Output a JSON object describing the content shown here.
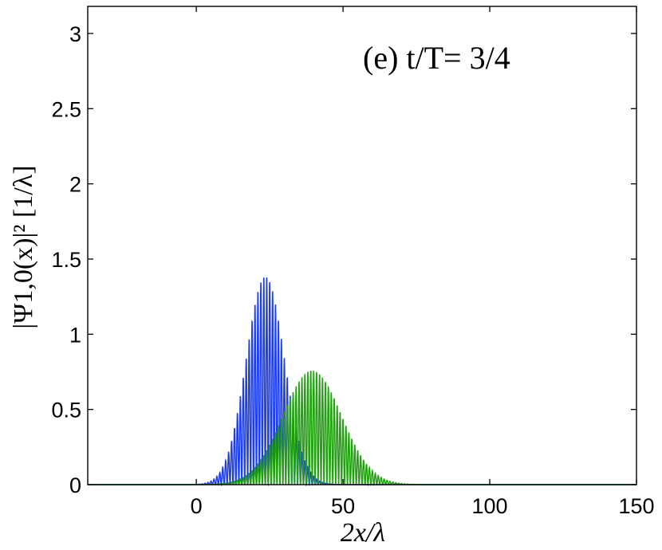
{
  "chart_data": {
    "type": "line",
    "annotation": "(e) t/T= 3/4",
    "xlabel": "2x/λ",
    "ylabel": "|Ψ1,0(x)|² [1/λ]",
    "xlim": [
      -37,
      150
    ],
    "ylim": [
      0,
      3.18
    ],
    "x_ticks": [
      0,
      50,
      100,
      150
    ],
    "y_ticks": [
      0,
      0.5,
      1,
      1.5,
      2,
      2.5,
      3
    ],
    "x_tick_labels": [
      "0",
      "50",
      "100",
      "150"
    ],
    "y_tick_labels": [
      "0",
      "0.5",
      "1",
      "1.5",
      "2",
      "2.5",
      "3"
    ],
    "grid": false,
    "legend": "none",
    "series": [
      {
        "color": "#1f3fe6",
        "center": 23.5,
        "width": 6.5,
        "peak": 1.39,
        "oscillation_period": 1,
        "x": [
          5,
          10,
          15,
          20,
          23.5,
          27,
          30,
          35,
          40,
          45
        ],
        "y": [
          0.01,
          0.08,
          0.4,
          1.1,
          1.39,
          1.2,
          0.7,
          0.16,
          0.02,
          0
        ]
      },
      {
        "color": "#22a012",
        "center": 39.5,
        "width": 10,
        "peak": 0.76,
        "oscillation_period": 1,
        "x": [
          15,
          20,
          25,
          30,
          35,
          39.5,
          45,
          50,
          55,
          60,
          65
        ],
        "y": [
          0.01,
          0.06,
          0.18,
          0.4,
          0.66,
          0.76,
          0.62,
          0.4,
          0.18,
          0.06,
          0.01
        ]
      }
    ]
  }
}
